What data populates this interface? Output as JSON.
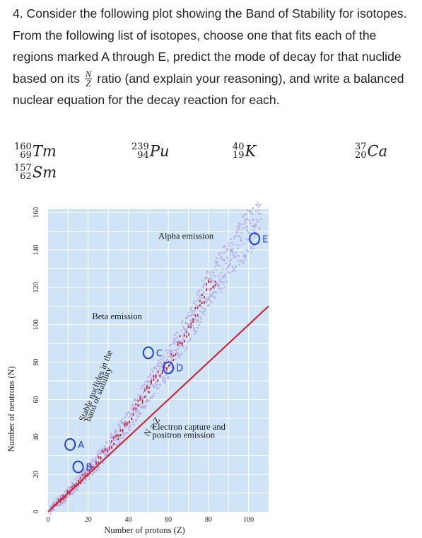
{
  "question": {
    "part1": "4. Consider the following plot showing the Band of Stability for isotopes. From the following list of isotopes, choose one that fits each of the regions marked A through E, predict the mode of decay for that nuclide based on its",
    "ratio_num": "N",
    "ratio_den": "Z",
    "part2": "ratio (and explain your reasoning), and write a balanced nuclear equation for the decay reaction for each."
  },
  "isotopes": [
    {
      "mass": "160",
      "atomic": "69",
      "symbol": "Tm"
    },
    {
      "mass": "157",
      "atomic": "62",
      "symbol": "Sm"
    },
    {
      "mass": "239",
      "atomic": "94",
      "symbol": "Pu"
    },
    {
      "mass": "40",
      "atomic": "19",
      "symbol": "K"
    },
    {
      "mass": "37",
      "atomic": "20",
      "symbol": "Ca"
    }
  ],
  "chart_data": {
    "type": "scatter",
    "xlabel": "Number of protons (Z)",
    "ylabel": "Number of neutrons (N)",
    "xlim": [
      0,
      110
    ],
    "ylim": [
      0,
      162
    ],
    "xticks": [
      0,
      20,
      40,
      60,
      80,
      100
    ],
    "yticks": [
      0,
      20,
      40,
      60,
      80,
      100,
      120,
      140,
      160
    ],
    "grid": true,
    "background": "#cfe4f7",
    "line_color": "#cc2a3a",
    "band_color": "#b9a8e4",
    "stable_color": "#c8283a",
    "reference_line": {
      "label": "N = Z",
      "from": [
        0,
        0
      ],
      "to": [
        110,
        110
      ]
    },
    "band_of_stability": [
      [
        0,
        0
      ],
      [
        10,
        10
      ],
      [
        20,
        21
      ],
      [
        30,
        34
      ],
      [
        40,
        48
      ],
      [
        50,
        66
      ],
      [
        60,
        80
      ],
      [
        70,
        98
      ],
      [
        80,
        120
      ],
      [
        90,
        134
      ],
      [
        100,
        150
      ],
      [
        105,
        157
      ]
    ],
    "annotations": [
      {
        "text": "Alpha emission"
      },
      {
        "text": "Beta emission"
      },
      {
        "text": "Electron capture and"
      },
      {
        "text": "positron emission"
      },
      {
        "text": "Stable nuclides in the"
      },
      {
        "text": "band of stability"
      }
    ],
    "handwritten_marks": [
      {
        "text": "A",
        "at": [
          11,
          36
        ]
      },
      {
        "text": "B",
        "at": [
          15,
          24
        ]
      },
      {
        "text": "C",
        "at": [
          50,
          85
        ]
      },
      {
        "text": "D",
        "at": [
          60,
          77
        ]
      },
      {
        "text": "E",
        "at": [
          103,
          146
        ]
      }
    ]
  }
}
